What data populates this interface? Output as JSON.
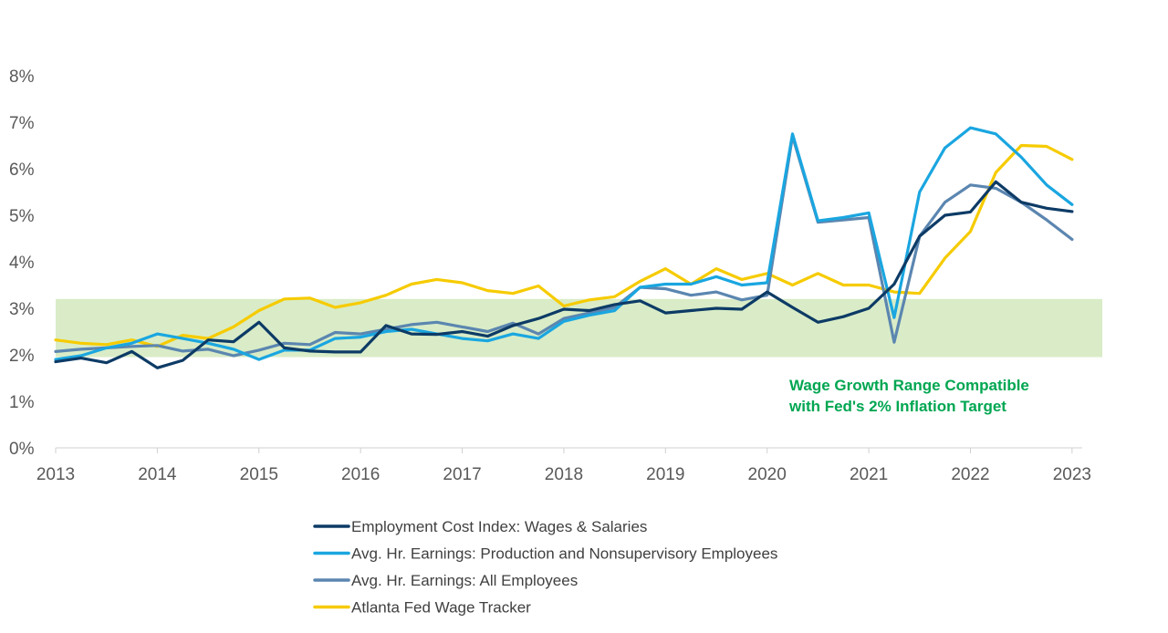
{
  "chart_data": {
    "type": "line",
    "title": "",
    "xlabel": "",
    "ylabel": "",
    "xlim": [
      2013,
      2023.1
    ],
    "ylim": [
      0,
      8
    ],
    "y_ticks": [
      {
        "value": 0,
        "label": "0%"
      },
      {
        "value": 1,
        "label": "1%"
      },
      {
        "value": 2,
        "label": "2%"
      },
      {
        "value": 3,
        "label": "3%"
      },
      {
        "value": 4,
        "label": "4%"
      },
      {
        "value": 5,
        "label": "5%"
      },
      {
        "value": 6,
        "label": "6%"
      },
      {
        "value": 7,
        "label": "7%"
      },
      {
        "value": 8,
        "label": "8%"
      }
    ],
    "x_ticks": [
      {
        "value": 2013,
        "label": "2013"
      },
      {
        "value": 2014,
        "label": "2014"
      },
      {
        "value": 2015,
        "label": "2015"
      },
      {
        "value": 2016,
        "label": "2016"
      },
      {
        "value": 2017,
        "label": "2017"
      },
      {
        "value": 2018,
        "label": "2018"
      },
      {
        "value": 2019,
        "label": "2019"
      },
      {
        "value": 2020,
        "label": "2020"
      },
      {
        "value": 2021,
        "label": "2021"
      },
      {
        "value": 2022,
        "label": "2022"
      },
      {
        "value": 2023,
        "label": "2023"
      }
    ],
    "band": {
      "from": 1.95,
      "to": 3.2,
      "color": "#d9ecc7",
      "label_lines": [
        "Wage Growth Range Compatible",
        "with Fed's 2% Inflation Target"
      ],
      "label_color": "#00a651"
    },
    "x": [
      2013.0,
      2013.25,
      2013.5,
      2013.75,
      2014.0,
      2014.25,
      2014.5,
      2014.75,
      2015.0,
      2015.25,
      2015.5,
      2015.75,
      2016.0,
      2016.25,
      2016.5,
      2016.75,
      2017.0,
      2017.25,
      2017.5,
      2017.75,
      2018.0,
      2018.25,
      2018.5,
      2018.75,
      2019.0,
      2019.25,
      2019.5,
      2019.75,
      2020.0,
      2020.25,
      2020.5,
      2020.75,
      2021.0,
      2021.25,
      2021.5,
      2021.75,
      2022.0,
      2022.25,
      2022.5,
      2022.75,
      2023.0
    ],
    "series": [
      {
        "name": "Employment Cost Index:  Wages & Salaries",
        "color": "#0d3b66",
        "values": [
          1.85,
          1.93,
          1.83,
          2.07,
          1.72,
          1.88,
          2.32,
          2.28,
          2.7,
          2.15,
          2.08,
          2.06,
          2.06,
          2.63,
          2.45,
          2.44,
          2.5,
          2.4,
          2.63,
          2.78,
          2.98,
          2.95,
          3.08,
          3.16,
          2.9,
          2.95,
          3.0,
          2.98,
          3.35,
          3.02,
          2.7,
          2.82,
          3.0,
          3.52,
          4.55,
          5.0,
          5.07,
          5.72,
          5.28,
          5.15,
          5.08
        ]
      },
      {
        "name": "Avg. Hr. Earnings:  Production and Nonsupervisory Employees",
        "color": "#1aa6e0",
        "values": [
          1.9,
          1.98,
          2.15,
          2.25,
          2.45,
          2.35,
          2.25,
          2.12,
          1.9,
          2.1,
          2.1,
          2.35,
          2.38,
          2.5,
          2.55,
          2.45,
          2.35,
          2.3,
          2.45,
          2.35,
          2.72,
          2.85,
          2.95,
          3.45,
          3.52,
          3.52,
          3.68,
          3.5,
          3.55,
          6.75,
          4.88,
          4.95,
          5.05,
          2.8,
          5.5,
          6.45,
          6.88,
          6.75,
          6.25,
          5.65,
          5.23
        ]
      },
      {
        "name": "Avg. Hr. Earnings:  All Employees",
        "color": "#5b86b0",
        "values": [
          2.07,
          2.12,
          2.15,
          2.18,
          2.2,
          2.08,
          2.12,
          1.98,
          2.1,
          2.25,
          2.22,
          2.48,
          2.45,
          2.55,
          2.65,
          2.7,
          2.6,
          2.5,
          2.68,
          2.45,
          2.78,
          2.9,
          3.02,
          3.45,
          3.42,
          3.28,
          3.35,
          3.18,
          3.28,
          6.7,
          4.85,
          4.9,
          4.95,
          2.27,
          4.55,
          5.28,
          5.65,
          5.58,
          5.28,
          4.9,
          4.48
        ]
      },
      {
        "name": "Atlanta Fed Wage Tracker",
        "color": "#f6cb00",
        "values": [
          2.32,
          2.25,
          2.22,
          2.32,
          2.18,
          2.42,
          2.35,
          2.6,
          2.95,
          3.2,
          3.22,
          3.02,
          3.12,
          3.28,
          3.52,
          3.62,
          3.55,
          3.38,
          3.32,
          3.48,
          3.05,
          3.18,
          3.25,
          3.58,
          3.85,
          3.52,
          3.85,
          3.62,
          3.75,
          3.5,
          3.75,
          3.5,
          3.5,
          3.35,
          3.32,
          4.08,
          4.65,
          5.92,
          6.5,
          6.48,
          6.2
        ]
      }
    ],
    "legend_position": "bottom"
  }
}
